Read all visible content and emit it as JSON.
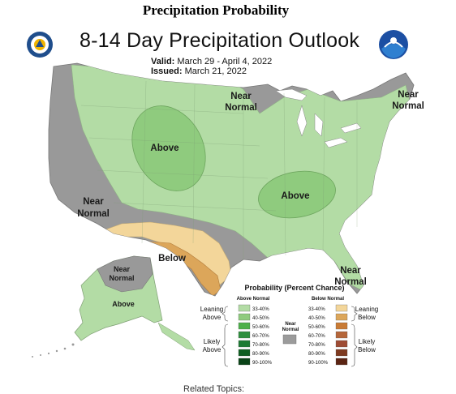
{
  "page": {
    "heading": "Precipitation Probability",
    "related_topics": "Related Topics:"
  },
  "map": {
    "title": "8-14 Day Precipitation Outlook",
    "valid_label": "Valid:",
    "valid_range": "March 29 - April 4, 2022",
    "issued_label": "Issued:",
    "issued_date": "March 21, 2022"
  },
  "regions": {
    "near_normal_west_line1": "Near",
    "near_normal_west_line2": "Normal",
    "near_normal_north_line1": "Near",
    "near_normal_north_line2": "Normal",
    "near_normal_ne_line1": "Near",
    "near_normal_ne_line2": "Normal",
    "near_normal_fl_line1": "Near",
    "near_normal_fl_line2": "Normal",
    "near_normal_ak_line1": "Near",
    "near_normal_ak_line2": "Normal",
    "above_plains": "Above",
    "above_ohio_valley": "Above",
    "above_alaska": "Above",
    "below_texas": "Below"
  },
  "legend": {
    "title": "Probability (Percent Chance)",
    "above_header": "Above Normal",
    "below_header": "Below Normal",
    "near_normal_line1": "Near",
    "near_normal_line2": "Normal",
    "leaning_above_line1": "Leaning",
    "leaning_above_line2": "Above",
    "likely_above_line1": "Likely",
    "likely_above_line2": "Above",
    "leaning_below_line1": "Leaning",
    "leaning_below_line2": "Below",
    "likely_below_line1": "Likely",
    "likely_below_line2": "Below",
    "above_bins": [
      {
        "label": "33-40%",
        "color": "#b3dca5"
      },
      {
        "label": "40-50%",
        "color": "#8fcb7e"
      },
      {
        "label": "50-60%",
        "color": "#4eb04a"
      },
      {
        "label": "60-70%",
        "color": "#2f8f3e"
      },
      {
        "label": "70-80%",
        "color": "#1d7a33"
      },
      {
        "label": "80-90%",
        "color": "#0f5e22"
      },
      {
        "label": "90-100%",
        "color": "#0a4318"
      }
    ],
    "below_bins": [
      {
        "label": "33-40%",
        "color": "#f3d69a"
      },
      {
        "label": "40-50%",
        "color": "#dca65a"
      },
      {
        "label": "50-60%",
        "color": "#c97b35"
      },
      {
        "label": "60-70%",
        "color": "#b5663a"
      },
      {
        "label": "70-80%",
        "color": "#9e4c34"
      },
      {
        "label": "80-90%",
        "color": "#7e3a20"
      },
      {
        "label": "90-100%",
        "color": "#5b2413"
      }
    ],
    "near_normal_color": "#9b9b9b"
  },
  "colors": {
    "near_normal": "#999999",
    "above_33_40": "#b3dca5",
    "above_40_50": "#8fcb7e",
    "below_33_40": "#f3d69a",
    "below_40_50": "#dca65a"
  },
  "icons": {
    "left_logo": "commerce-seal-icon",
    "right_logo": "noaa-logo-icon"
  }
}
